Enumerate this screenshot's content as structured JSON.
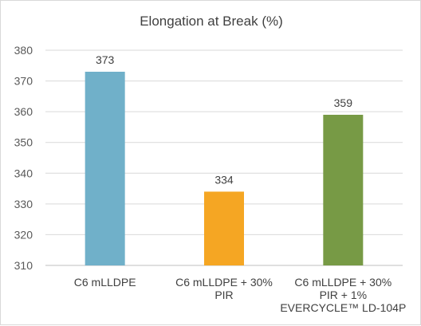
{
  "chart_data": {
    "type": "bar",
    "title": "Elongation at Break (%)",
    "categories": [
      [
        "C6 mLLDPE"
      ],
      [
        "C6 mLLDPE + 30%",
        "PIR"
      ],
      [
        "C6 mLLDPE + 30%",
        "PIR + 1%",
        "EVERCYCLE™ LD-104P"
      ]
    ],
    "values": [
      373,
      334,
      359
    ],
    "data_labels": [
      "373",
      "334",
      "359"
    ],
    "colors": [
      "#70b0c9",
      "#f5a623",
      "#779a45"
    ],
    "ylim": [
      310,
      380
    ],
    "yticks": [
      "310",
      "320",
      "330",
      "340",
      "350",
      "360",
      "370",
      "380"
    ],
    "grid": true,
    "legend": "none"
  }
}
